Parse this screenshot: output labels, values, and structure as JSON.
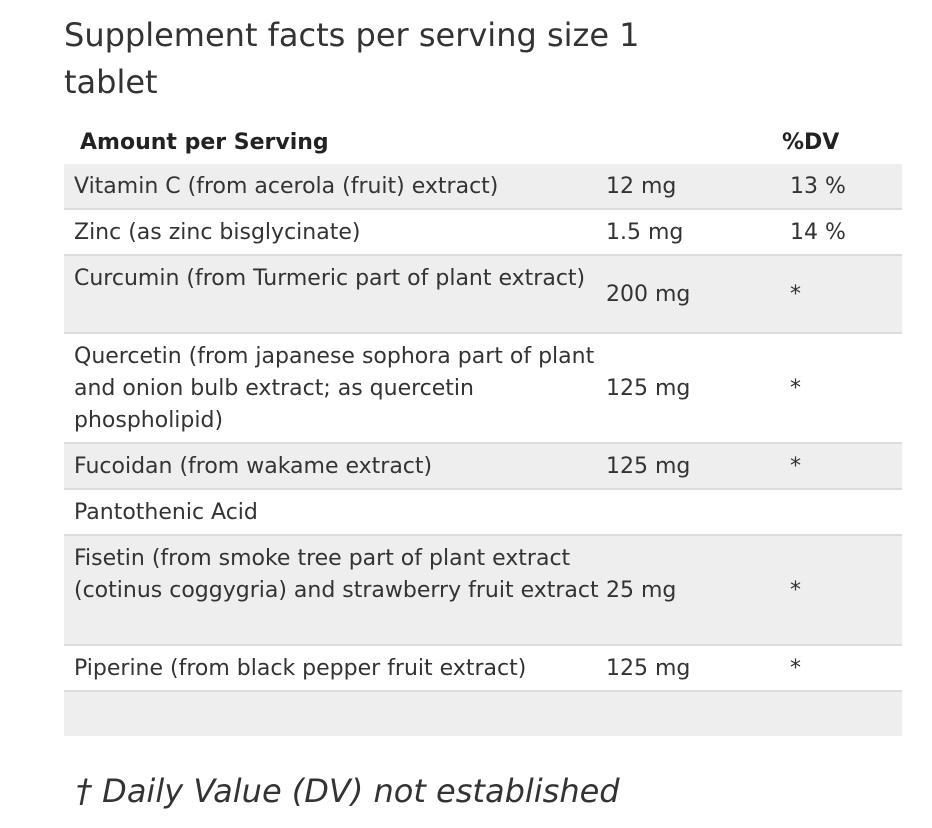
{
  "title": "Supplement facts per serving size 1 tablet",
  "table": {
    "headers": {
      "amount": "Amount per Serving",
      "dv": "%DV"
    },
    "rows": [
      {
        "name": "Vitamin C (from acerola (fruit) extract)",
        "amount": "12 mg",
        "dv": "13 %"
      },
      {
        "name": "Zinc (as zinc bisglycinate)",
        "amount": "1.5 mg",
        "dv": "14 %"
      },
      {
        "name": "Curcumin (from Turmeric part of plant extract)",
        "amount": "200 mg",
        "dv": "*"
      },
      {
        "name": "Quercetin (from japanese sophora part of plant and onion bulb extract; as quercetin phospholipid)",
        "amount": "125 mg",
        "dv": "*"
      },
      {
        "name": "Fucoidan (from wakame extract)",
        "amount": "125 mg",
        "dv": "*"
      },
      {
        "name": "Pantothenic Acid",
        "amount": "",
        "dv": ""
      },
      {
        "name": "Fisetin (from smoke tree part of plant extract (cotinus coggygria) and strawberry fruit extract",
        "amount": "25 mg",
        "dv": "*"
      },
      {
        "name": "Piperine (from black pepper fruit extract)",
        "amount": "125 mg",
        "dv": "*"
      },
      {
        "name": "",
        "amount": "",
        "dv": ""
      }
    ]
  },
  "footer": "† Daily Value (DV) not established"
}
